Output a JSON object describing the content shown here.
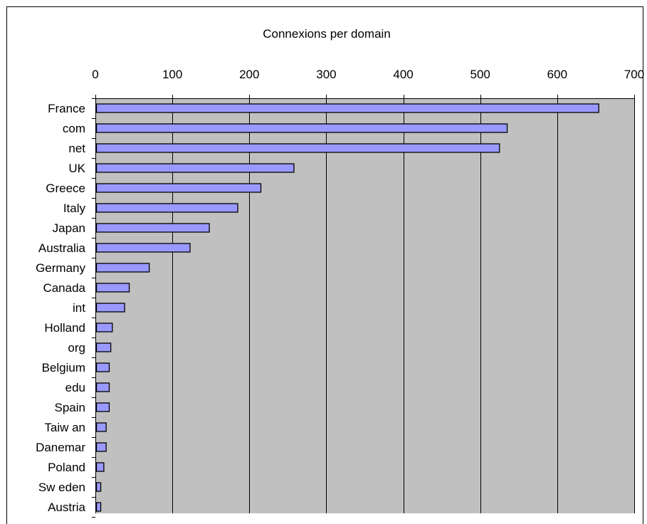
{
  "chart_data": {
    "type": "bar",
    "orientation": "horizontal",
    "title": "Connexions per domain",
    "xlabel": "",
    "ylabel": "",
    "xlim": [
      0,
      700
    ],
    "x_ticks": [
      0,
      100,
      200,
      300,
      400,
      500,
      600,
      700
    ],
    "tick_labels": [
      "0",
      "100",
      "200",
      "300",
      "400",
      "500",
      "600",
      "700"
    ],
    "grid": true,
    "legend": "none",
    "categories": [
      "France",
      "com",
      "net",
      "UK",
      "Greece",
      "Italy",
      "Japan",
      "Australia",
      "Germany",
      "Canada",
      "int",
      "Holland",
      "org",
      "Belgium",
      "edu",
      "Spain",
      "Taiw an",
      "Danemar",
      "Poland",
      "Sw eden",
      "Austria"
    ],
    "values": [
      654,
      535,
      525,
      258,
      215,
      185,
      148,
      123,
      70,
      44,
      38,
      22,
      20,
      18,
      18,
      18,
      14,
      14,
      11,
      7,
      7
    ],
    "colors": {
      "bar": "#9999ff",
      "bar_stroke": "#000000",
      "plot_bg": "#c0c0c0",
      "grid": "#000000",
      "frame": "#000000"
    }
  }
}
